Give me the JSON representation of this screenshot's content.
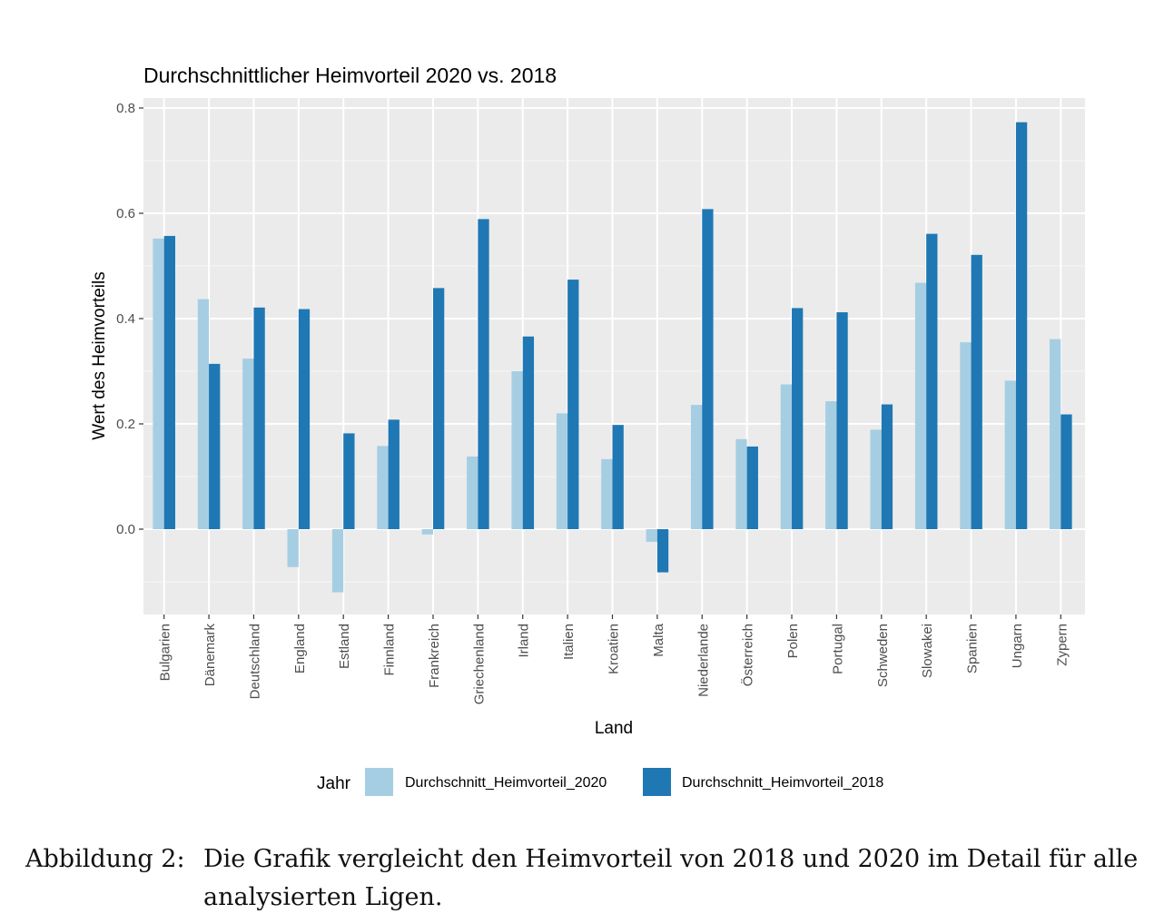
{
  "chart_data": {
    "type": "bar",
    "title": "Durchschnittlicher Heimvorteil 2020 vs. 2018",
    "xlabel": "Land",
    "ylabel": "Wert des Heimvorteils",
    "ylim": [
      -0.165,
      0.82
    ],
    "yticks": [
      "0.0",
      "0.2",
      "0.4",
      "0.6",
      "0.8"
    ],
    "categories": [
      "Bulgarien",
      "Dänemark",
      "Deutschland",
      "England",
      "Estland",
      "Finnland",
      "Frankreich",
      "Griechenland",
      "Irland",
      "Italien",
      "Kroatien",
      "Malta",
      "Niederlande",
      "Österreich",
      "Polen",
      "Portugal",
      "Schweden",
      "Slowakei",
      "Spanien",
      "Ungarn",
      "Zypern"
    ],
    "series": [
      {
        "name": "Durchschnitt_Heimvorteil_2020",
        "color": "#a6cee3",
        "values": [
          0.552,
          0.437,
          0.324,
          -0.072,
          -0.12,
          0.158,
          -0.01,
          0.138,
          0.3,
          0.22,
          0.133,
          -0.024,
          0.236,
          0.171,
          0.275,
          0.243,
          0.189,
          0.468,
          0.355,
          0.282,
          0.361
        ]
      },
      {
        "name": "Durchschnitt_Heimvorteil_2018",
        "color": "#1f78b4",
        "values": [
          0.557,
          0.314,
          0.421,
          0.418,
          0.182,
          0.208,
          0.458,
          0.589,
          0.366,
          0.474,
          0.198,
          -0.082,
          0.608,
          0.157,
          0.42,
          0.412,
          0.237,
          0.561,
          0.521,
          0.773,
          0.218
        ]
      }
    ],
    "legend": {
      "title": "Jahr",
      "position": "bottom"
    },
    "grid": true,
    "panel_color": "#ebebeb"
  },
  "caption": {
    "label": "Abbildung 2:",
    "text": "Die Grafik vergleicht den Heimvorteil von 2018 und 2020 im Detail für alle analysierten Ligen."
  }
}
